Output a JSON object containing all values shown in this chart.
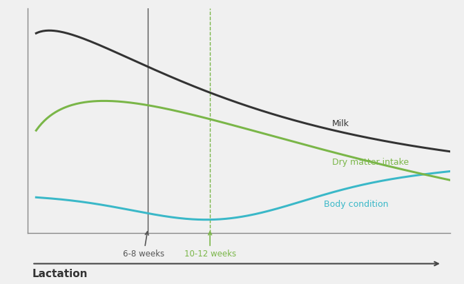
{
  "background_color": "#f0f0f0",
  "figure_bg": "#f0f0f0",
  "xlabel": "Lactation",
  "xlabel_fontsize": 11,
  "xlabel_fontweight": "bold",
  "milk_color": "#333333",
  "dmi_color": "#7ab648",
  "bc_color": "#3ab8c8",
  "arrow1_color": "#555555",
  "arrow2_color": "#7ab648",
  "vline_color": "#555555",
  "dashed_color": "#7ab648",
  "label_milk": "Milk",
  "label_dmi": "Dry matter intake",
  "label_bc": "Body condition",
  "annot1": "6-8 weeks",
  "annot2": "10-12 weeks",
  "annot1_color": "#555555",
  "annot2_color": "#7ab648",
  "line_width": 2.2
}
